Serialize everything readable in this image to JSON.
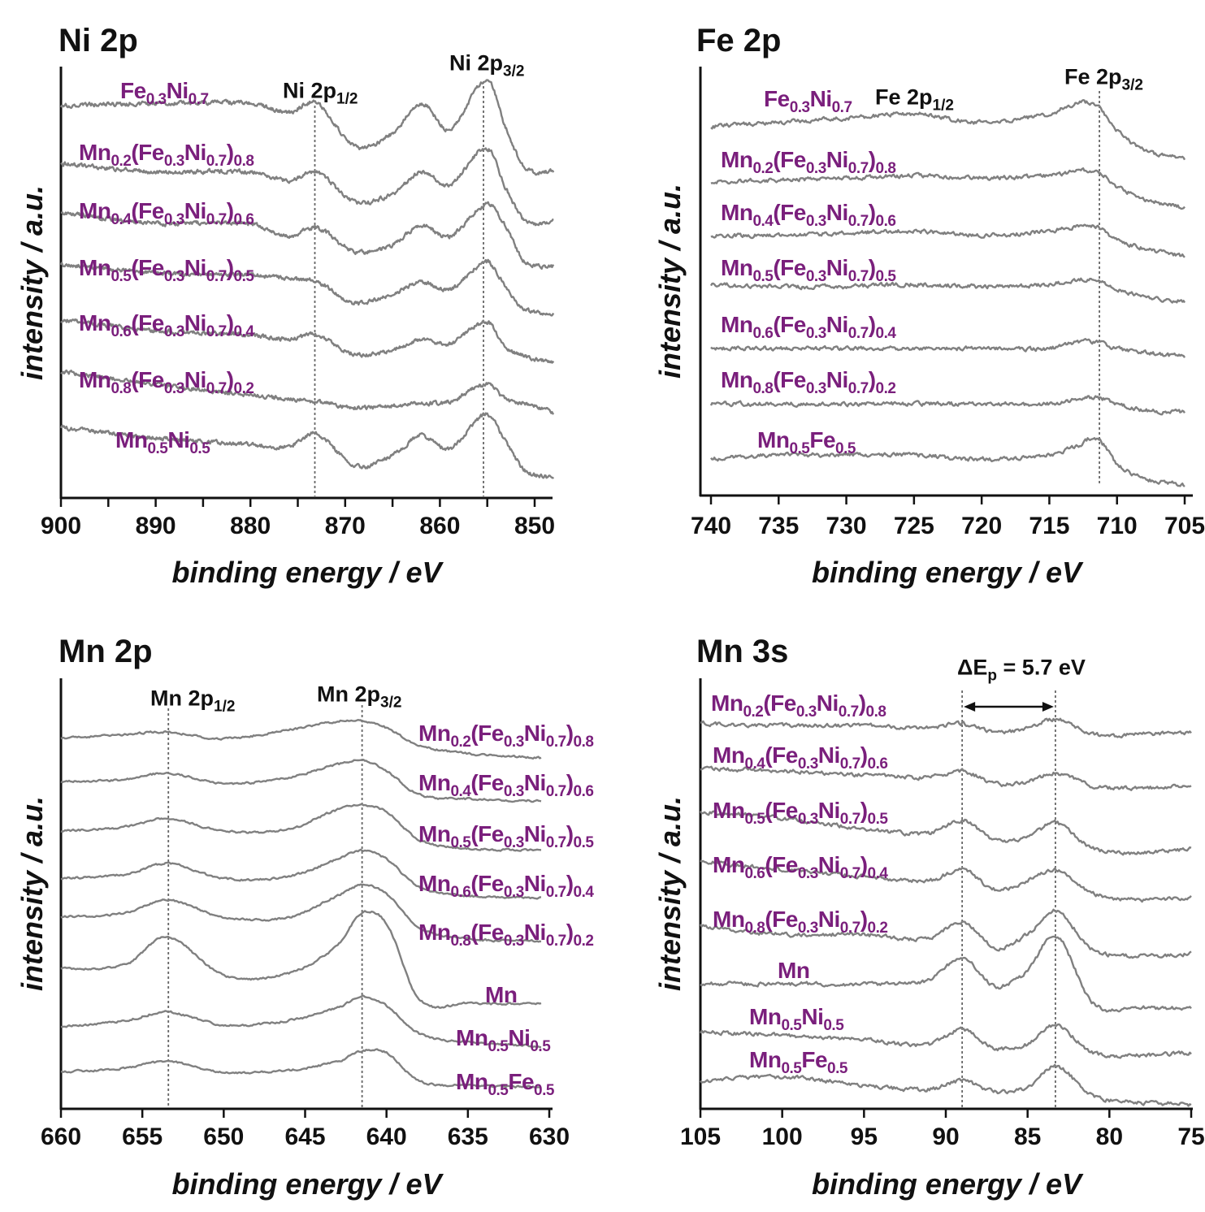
{
  "colors": {
    "series_label": "#7a1f7c",
    "spectrum": "#808080",
    "axis": "#111111",
    "reference_line": "#666666"
  },
  "chart_data": [
    {
      "type": "line",
      "title": "Ni 2p",
      "xlabel": "binding energy / eV",
      "ylabel": "intensity / a.u.",
      "xlim": [
        900,
        848
      ],
      "x_reversed": true,
      "x_ticks": [
        900,
        890,
        880,
        870,
        860,
        850
      ],
      "y_ticks": "none",
      "grid": false,
      "x": [
        900,
        890,
        880,
        876,
        873,
        869,
        865,
        862,
        859,
        855,
        853,
        851,
        848
      ],
      "series": [
        {
          "name": "Fe0.3Ni0.7",
          "values": [
            91.5,
            92,
            92,
            90,
            92,
            82,
            85,
            92,
            86,
            97.5,
            86,
            77,
            76
          ]
        },
        {
          "name": "Mn0.2(Fe0.3Ni0.7)0.8",
          "values": [
            78,
            76,
            76,
            74,
            76,
            69,
            71,
            76,
            73,
            81.5,
            72,
            64.5,
            64.5
          ]
        },
        {
          "name": "Mn0.4(Fe0.3Ni0.7)0.6",
          "values": [
            66.5,
            64,
            64,
            61,
            63,
            57.5,
            59,
            63.5,
            61,
            68.5,
            63,
            55,
            54
          ]
        },
        {
          "name": "Mn0.5(Fe0.3Ni0.7)0.5",
          "values": [
            54.5,
            52.5,
            52,
            51,
            50.5,
            45.5,
            47.5,
            50.5,
            48.5,
            55,
            49,
            44,
            43
          ]
        },
        {
          "name": "Mn0.6(Fe0.3Ni0.7)0.4",
          "values": [
            41.5,
            39,
            38,
            37,
            38,
            33.5,
            34.5,
            37,
            36,
            41,
            35,
            33,
            31.5
          ]
        },
        {
          "name": "Mn0.8(Fe0.3Ni0.7)0.2",
          "values": [
            29.5,
            26.5,
            24,
            23,
            22.5,
            21,
            21.5,
            22,
            22.5,
            26.5,
            23,
            22,
            20
          ]
        },
        {
          "name": "Mn0.5Ni0.5",
          "values": [
            16.5,
            14,
            12.5,
            12,
            15,
            7.5,
            10,
            14.5,
            11.5,
            19.5,
            13,
            6.5,
            4.5
          ]
        }
      ],
      "reference_lines": [
        {
          "x": 873.2,
          "label": "Ni 2p",
          "sub": "1/2"
        },
        {
          "x": 855.4,
          "label": "Ni 2p",
          "sub": "3/2"
        }
      ]
    },
    {
      "type": "line",
      "title": "Fe 2p",
      "xlabel": "binding energy / eV",
      "ylabel": "intensity / a.u.",
      "xlim": [
        740.8,
        704.4
      ],
      "x_reversed": true,
      "x_ticks": [
        740,
        735,
        730,
        725,
        720,
        715,
        710,
        705
      ],
      "y_ticks": "none",
      "grid": false,
      "x": [
        740,
        735,
        730,
        725,
        720,
        715,
        713,
        711.5,
        710,
        708,
        705
      ],
      "series": [
        {
          "name": "Fe0.3Ni0.7",
          "values": [
            86.5,
            87.5,
            88.5,
            89.5,
            87.5,
            89.5,
            92,
            91.5,
            85.5,
            81,
            79
          ]
        },
        {
          "name": "Mn0.2(Fe0.3Ni0.7)0.8",
          "values": [
            73.5,
            74,
            74.5,
            75,
            74.5,
            75,
            76,
            76,
            72.5,
            69.5,
            67.5
          ]
        },
        {
          "name": "Mn0.4(Fe0.3Ni0.7)0.6",
          "values": [
            61,
            61,
            61.5,
            62,
            61,
            62,
            63,
            63,
            60,
            58,
            56
          ]
        },
        {
          "name": "Mn0.5(Fe0.3Ni0.7)0.5",
          "values": [
            49.5,
            49,
            49,
            49.5,
            49,
            49.5,
            50.5,
            50.5,
            48.5,
            46.5,
            45.5
          ]
        },
        {
          "name": "Mn0.6(Fe0.3Ni0.7)0.4",
          "values": [
            34.5,
            34.5,
            34.5,
            34.5,
            34.5,
            34.5,
            36,
            36,
            34.5,
            33.5,
            32.5
          ]
        },
        {
          "name": "Mn0.8(Fe0.3Ni0.7)0.2",
          "values": [
            21.5,
            21.5,
            21.5,
            21.5,
            21.5,
            21.5,
            22.5,
            23,
            21.5,
            20,
            19.5
          ]
        },
        {
          "name": "Mn0.5Fe0.5",
          "values": [
            8.5,
            9.5,
            9.5,
            9.5,
            8.5,
            9.5,
            11.5,
            13.5,
            7.5,
            4,
            2.5
          ]
        }
      ],
      "reference_lines": [
        {
          "x": 711.3,
          "label": "Fe 2p",
          "sub": "3/2"
        }
      ],
      "annotations": [
        {
          "label": "Fe 2p",
          "sub": "1/2"
        }
      ]
    },
    {
      "type": "line",
      "title": "Mn 2p",
      "xlabel": "binding energy / eV",
      "ylabel": "intensity / a.u.",
      "xlim": [
        660,
        629.8
      ],
      "x_reversed": true,
      "x_ticks": [
        660,
        655,
        650,
        645,
        640,
        635,
        630
      ],
      "y_ticks": "none",
      "grid": false,
      "x": [
        660,
        656,
        653.5,
        650,
        646,
        643,
        641.5,
        640,
        638,
        635,
        630.5
      ],
      "series": [
        {
          "name": "Mn0.2(Fe0.3Ni0.7)0.8",
          "values": [
            86,
            87,
            87.5,
            86,
            88,
            90,
            90,
            88.5,
            84.5,
            82.5,
            81.5
          ]
        },
        {
          "name": "Mn0.4(Fe0.3Ni0.7)0.6",
          "values": [
            76,
            76.5,
            78,
            75.5,
            77,
            80,
            81,
            78.5,
            73,
            72,
            71.5
          ]
        },
        {
          "name": "Mn0.5(Fe0.3Ni0.7)0.5",
          "values": [
            64.5,
            65.5,
            67.5,
            64.5,
            65,
            69.5,
            70.5,
            69,
            62.5,
            60.5,
            60
          ]
        },
        {
          "name": "Mn0.6(Fe0.3Ni0.7)0.4",
          "values": [
            53.5,
            54.5,
            57,
            53.5,
            54,
            58,
            60,
            58,
            51.5,
            49.5,
            49
          ]
        },
        {
          "name": "Mn0.8(Fe0.3Ni0.7)0.2",
          "values": [
            44.5,
            45.5,
            48.5,
            44.5,
            44.5,
            49.5,
            52,
            50,
            42,
            39.5,
            39
          ]
        },
        {
          "name": "Mn",
          "values": [
            32.5,
            33.5,
            40,
            31,
            31.5,
            38,
            45.5,
            43,
            25.5,
            24.5,
            24.5
          ]
        },
        {
          "name": "Mn0.5Ni0.5",
          "values": [
            19,
            20.5,
            22.5,
            19.5,
            20.5,
            23.5,
            26,
            24,
            17.5,
            15.5,
            14.5
          ]
        },
        {
          "name": "Mn0.5Fe0.5",
          "values": [
            8.5,
            9.5,
            11,
            8.5,
            9,
            11,
            13.5,
            13,
            6.5,
            5.5,
            5
          ]
        }
      ],
      "reference_lines": [
        {
          "x": 653.4,
          "label": "Mn 2p",
          "sub": "1/2"
        },
        {
          "x": 641.5,
          "label": "Mn 2p",
          "sub": "3/2"
        }
      ]
    },
    {
      "type": "line",
      "title": "Mn 3s",
      "xlabel": "binding energy / eV",
      "ylabel": "intensity / a.u.",
      "xlim": [
        105,
        74.9
      ],
      "x_reversed": true,
      "x_ticks": [
        105,
        100,
        95,
        90,
        85,
        80,
        75
      ],
      "y_ticks": "none",
      "grid": false,
      "x": [
        105,
        100,
        95,
        91,
        89,
        87,
        85,
        83.3,
        81,
        78,
        75
      ],
      "series": [
        {
          "name": "Mn0.2(Fe0.3Ni0.7)0.8",
          "values": [
            89.5,
            89,
            89,
            88.5,
            89.5,
            87.5,
            88.5,
            90.5,
            87,
            87,
            87.5
          ]
        },
        {
          "name": "Mn0.4(Fe0.3Ni0.7)0.6",
          "values": [
            79,
            78.5,
            77.5,
            77,
            78.5,
            75.5,
            76,
            78,
            75,
            74.5,
            75
          ]
        },
        {
          "name": "Mn0.5(Fe0.3Ni0.7)0.5",
          "values": [
            69,
            67.5,
            65,
            64,
            67,
            62.5,
            63,
            66.5,
            60.5,
            59.5,
            60.5
          ]
        },
        {
          "name": "Mn0.6(Fe0.3Ni0.7)0.4",
          "values": [
            57.5,
            55.5,
            54,
            53,
            55.5,
            51,
            53,
            55.5,
            50,
            48.5,
            49
          ]
        },
        {
          "name": "Mn0.8(Fe0.3Ni0.7)0.2",
          "values": [
            42.5,
            40.5,
            40.5,
            39.5,
            43.5,
            37.5,
            40.5,
            46,
            37,
            35.5,
            36
          ]
        },
        {
          "name": "Mn",
          "values": [
            29,
            29,
            29,
            30,
            35,
            28.5,
            32,
            40.5,
            24.5,
            23.5,
            23.5
          ]
        },
        {
          "name": "Mn0.5Ni0.5",
          "values": [
            18,
            17,
            16,
            15,
            18.5,
            14,
            15,
            19.5,
            13,
            12.5,
            13
          ]
        },
        {
          "name": "Mn0.5Fe0.5",
          "values": [
            6.5,
            7.5,
            5.5,
            4.5,
            6.5,
            4,
            5,
            10,
            3,
            1.5,
            1
          ]
        }
      ],
      "reference_lines": [
        {
          "x": 89.0
        },
        {
          "x": 83.3
        }
      ],
      "annotations": [
        {
          "type": "double-arrow",
          "from": 89.0,
          "to": 83.3,
          "label": "ΔE",
          "sub": "p",
          "suffix": " = 5.7 eV"
        }
      ]
    }
  ]
}
